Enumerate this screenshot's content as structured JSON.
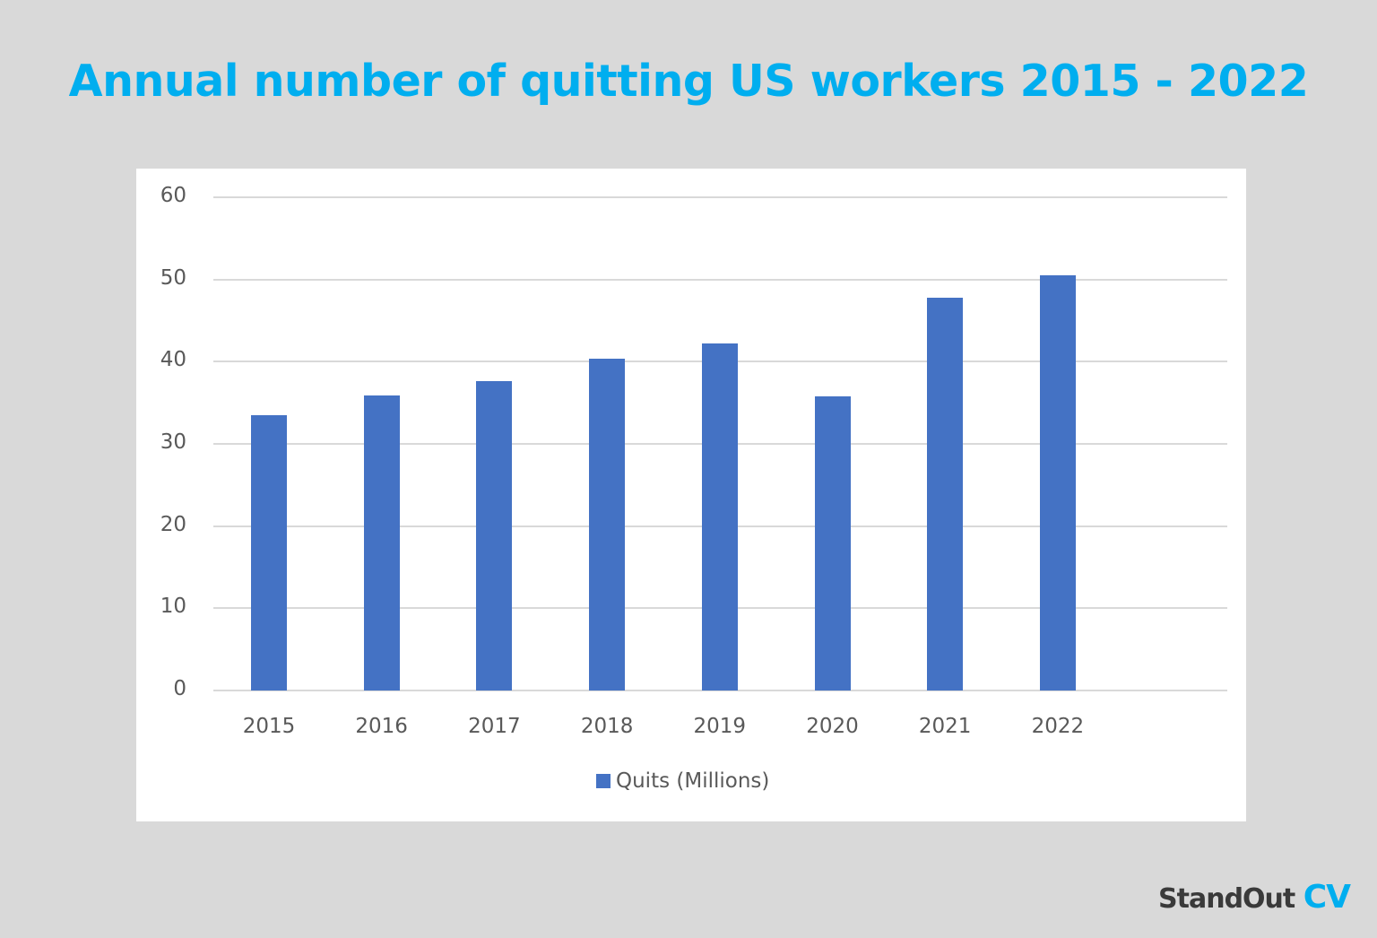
{
  "title": "Annual number of quitting US workers 2015 - 2022",
  "brand": {
    "name": "StandOut",
    "suffix": "CV"
  },
  "colors": {
    "title": "#00aeef",
    "bar": "#4472c4",
    "background": "#d9d9d9",
    "panel": "#ffffff"
  },
  "chart_data": {
    "type": "bar",
    "title": "Annual number of quitting US workers 2015 - 2022",
    "categories": [
      "2015",
      "2016",
      "2017",
      "2018",
      "2019",
      "2020",
      "2021",
      "2022"
    ],
    "series": [
      {
        "name": "Quits (Millions)",
        "values": [
          33.5,
          35.9,
          37.6,
          40.4,
          42.2,
          35.8,
          47.8,
          50.5
        ]
      }
    ],
    "xlabel": "",
    "ylabel": "",
    "ylim": [
      0,
      60
    ],
    "yticks": [
      "0",
      "10",
      "20",
      "30",
      "40",
      "50",
      "60"
    ],
    "grid": true,
    "legend_position": "bottom"
  }
}
